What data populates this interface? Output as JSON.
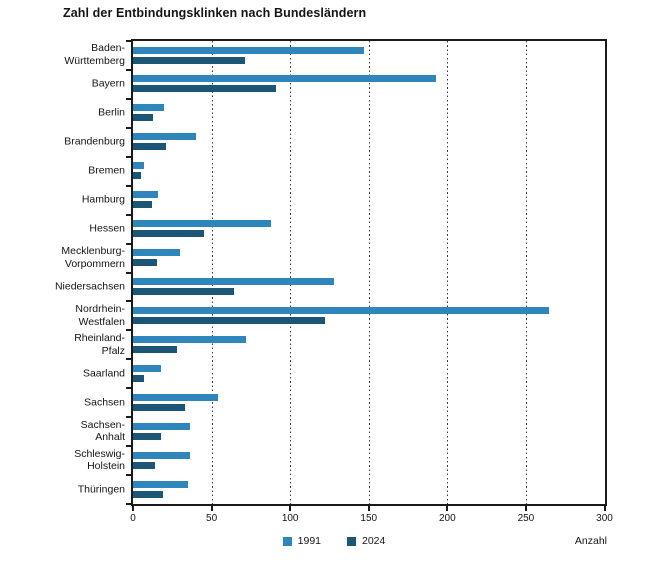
{
  "chart_data": {
    "type": "bar",
    "orientation": "horizontal",
    "title": "Zahl der Entbindungsklinken nach Bundesländern",
    "xlabel": "Anzahl",
    "xlim": [
      0,
      300
    ],
    "x_ticks": [
      0,
      50,
      100,
      150,
      200,
      250,
      300
    ],
    "grid": "vertical-dotted",
    "legend_position": "bottom-center",
    "categories": [
      "Baden-Württemberg",
      "Bayern",
      "Berlin",
      "Brandenburg",
      "Bremen",
      "Hamburg",
      "Hessen",
      "Mecklenburg-Vorpommern",
      "Niedersachsen",
      "Nordrhein-Westfalen",
      "Rheinland-Pfalz",
      "Saarland",
      "Sachsen",
      "Sachsen-Anhalt",
      "Schleswig-Holstein",
      "Thüringen"
    ],
    "display_categories": [
      "Baden-\nWürttemberg",
      "Bayern",
      "Berlin",
      "Brandenburg",
      "Bremen",
      "Hamburg",
      "Hessen",
      "Mecklenburg-\nVorpommern",
      "Niedersachsen",
      "Nordrhein-\nWestfalen",
      "Rheinland-\nPfalz",
      "Saarland",
      "Sachsen",
      "Sachsen-\nAnhalt",
      "Schleswig-\nHolstein",
      "Thüringen"
    ],
    "series": [
      {
        "name": "1991",
        "color": "#2e86bd",
        "values": [
          147,
          193,
          20,
          40,
          7,
          16,
          88,
          30,
          128,
          265,
          72,
          18,
          54,
          36,
          36,
          35
        ]
      },
      {
        "name": "2024",
        "color": "#1c5676",
        "values": [
          71,
          91,
          13,
          21,
          5,
          12,
          45,
          15,
          64,
          122,
          28,
          7,
          33,
          18,
          14,
          19
        ]
      }
    ],
    "axis_color": "#1a1a1a",
    "text_color": "#141414"
  }
}
